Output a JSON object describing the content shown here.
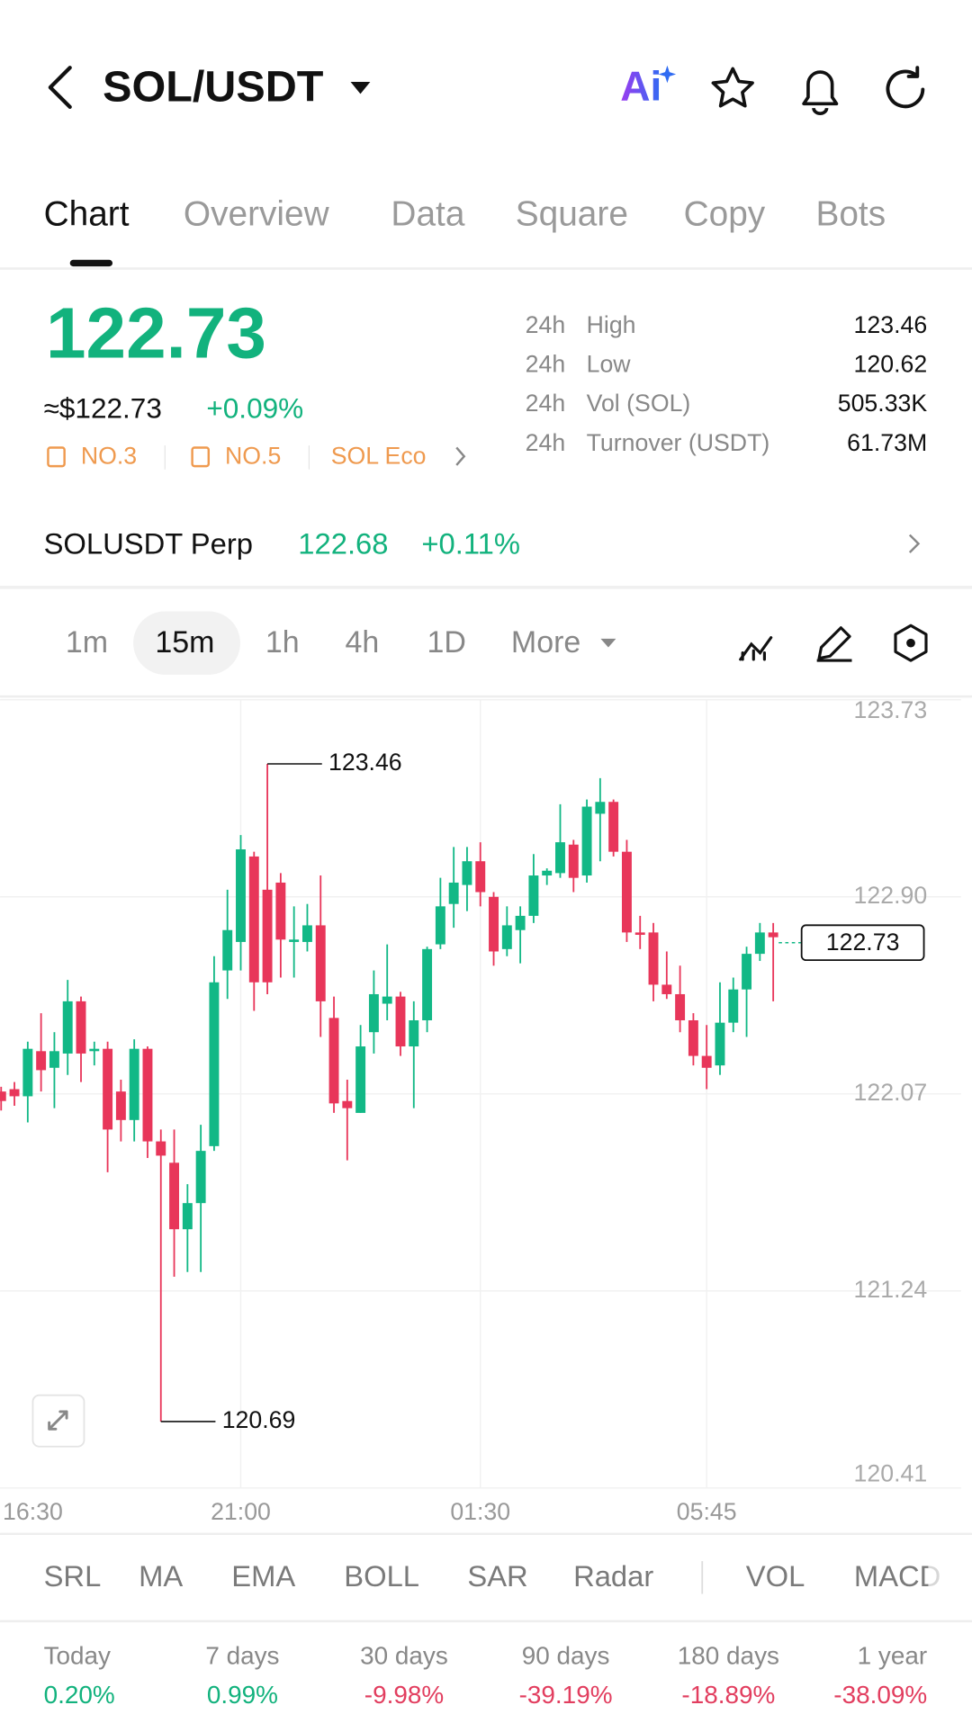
{
  "header": {
    "pair": "SOL/USDT",
    "ai_label": "Ai"
  },
  "tabs": [
    "Chart",
    "Overview",
    "Data",
    "Square",
    "Copy",
    "Bots"
  ],
  "price": {
    "last": "122.73",
    "usd": "≈$122.73",
    "change": "+0.09%"
  },
  "badges": [
    "NO.3",
    "NO.5",
    "SOL Eco"
  ],
  "stats": [
    [
      "24h",
      "High",
      "123.46"
    ],
    [
      "24h",
      "Low",
      "120.62"
    ],
    [
      "24h",
      "Vol (SOL)",
      "505.33K"
    ],
    [
      "24h",
      "Turnover (USDT)",
      "61.73M"
    ]
  ],
  "perp": {
    "name": "SOLUSDT Perp",
    "price": "122.68",
    "change": "+0.11%"
  },
  "timeframes": [
    "1m",
    "15m",
    "1h",
    "4h",
    "1D",
    "More"
  ],
  "indicators": [
    "SRL",
    "MA",
    "EMA",
    "BOLL",
    "SAR",
    "Radar",
    "VOL",
    "MACD"
  ],
  "performance": [
    {
      "label": "Today",
      "value": "0.20%"
    },
    {
      "label": "7 days",
      "value": "0.99%"
    },
    {
      "label": "30 days",
      "value": "-9.98%"
    },
    {
      "label": "90 days",
      "value": "-39.19%"
    },
    {
      "label": "180 days",
      "value": "-18.89%"
    },
    {
      "label": "1 year",
      "value": "-38.09%"
    }
  ],
  "chart_data": {
    "type": "candlestick",
    "up_color": "#12b886",
    "down_color": "#e8365a",
    "grid": true,
    "categories": [
      "16:30",
      null,
      null,
      null,
      null,
      null,
      null,
      null,
      null,
      null,
      null,
      null,
      null,
      null,
      null,
      null,
      null,
      null,
      "21:00",
      null,
      null,
      null,
      null,
      null,
      null,
      null,
      null,
      null,
      null,
      null,
      null,
      null,
      null,
      null,
      null,
      null,
      "01:30",
      null,
      null,
      null,
      null,
      null,
      null,
      null,
      null,
      null,
      null,
      null,
      null,
      null,
      null,
      null,
      null,
      "05:45",
      null,
      null,
      null,
      null,
      null
    ],
    "open": [
      122.08,
      122.09,
      122.06,
      122.25,
      122.18,
      122.24,
      122.46,
      122.25,
      122.26,
      122.08,
      121.96,
      122.26,
      121.87,
      121.78,
      121.5,
      121.61,
      121.85,
      122.59,
      122.71,
      123.07,
      122.93,
      122.96,
      122.71,
      122.71,
      122.78,
      122.39,
      122.04,
      121.99,
      122.33,
      122.45,
      122.48,
      122.27,
      122.38,
      122.7,
      122.87,
      122.95,
      123.05,
      122.9,
      122.68,
      122.76,
      122.82,
      122.99,
      123.0,
      123.12,
      122.99,
      123.25,
      123.3,
      123.09,
      122.75,
      122.75,
      122.53,
      122.49,
      122.38,
      122.23,
      122.19,
      122.37,
      122.51,
      122.66,
      122.75
    ],
    "high": [
      122.1,
      122.12,
      122.29,
      122.41,
      122.33,
      122.55,
      122.48,
      122.29,
      122.29,
      122.13,
      122.3,
      122.27,
      121.92,
      121.92,
      121.69,
      121.94,
      122.65,
      122.93,
      123.16,
      123.09,
      123.46,
      123.0,
      122.86,
      122.87,
      122.99,
      122.48,
      122.13,
      122.36,
      122.59,
      122.7,
      122.5,
      122.46,
      122.69,
      122.98,
      123.11,
      123.11,
      123.13,
      122.92,
      122.86,
      122.86,
      123.08,
      123.02,
      123.29,
      123.14,
      123.31,
      123.4,
      123.31,
      123.14,
      122.82,
      122.79,
      122.67,
      122.61,
      122.41,
      122.36,
      122.54,
      122.56,
      122.69,
      122.79,
      122.79
    ],
    "low": [
      122.0,
      122.02,
      121.95,
      122.08,
      122.01,
      122.15,
      122.12,
      122.19,
      121.74,
      121.87,
      121.87,
      121.8,
      120.69,
      121.3,
      121.32,
      121.32,
      121.83,
      122.47,
      122.59,
      122.42,
      122.49,
      122.56,
      122.56,
      122.67,
      122.31,
      121.99,
      121.79,
      121.99,
      122.24,
      122.38,
      122.23,
      122.01,
      122.33,
      122.68,
      122.77,
      122.84,
      122.86,
      122.61,
      122.65,
      122.62,
      122.79,
      122.95,
      122.98,
      122.92,
      122.96,
      123.05,
      123.07,
      122.71,
      122.68,
      122.46,
      122.47,
      122.33,
      122.19,
      122.09,
      122.15,
      122.33,
      122.31,
      122.63,
      122.46
    ],
    "close": [
      122.04,
      122.06,
      122.26,
      122.17,
      122.25,
      122.46,
      122.24,
      122.26,
      121.92,
      121.96,
      122.26,
      121.87,
      121.81,
      121.5,
      121.61,
      121.83,
      122.54,
      122.76,
      123.1,
      122.54,
      122.54,
      122.72,
      122.72,
      122.78,
      122.46,
      122.03,
      122.01,
      122.27,
      122.49,
      122.48,
      122.27,
      122.38,
      122.68,
      122.86,
      122.96,
      123.05,
      122.92,
      122.67,
      122.78,
      122.82,
      122.99,
      123.01,
      123.13,
      122.98,
      123.28,
      123.3,
      123.09,
      122.75,
      122.74,
      122.53,
      122.49,
      122.38,
      122.23,
      122.18,
      122.37,
      122.51,
      122.66,
      122.75,
      122.73
    ],
    "ylim": [
      120.41,
      123.73
    ],
    "yticks": [
      123.73,
      {
        "value": 122.9,
        "label": "122.90"
      },
      122.07,
      121.24,
      120.41
    ]
  }
}
